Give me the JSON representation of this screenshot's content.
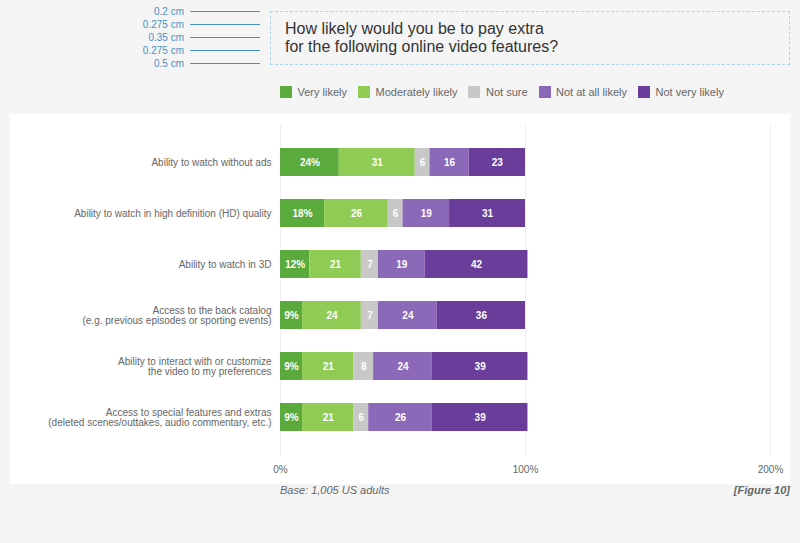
{
  "chart_data": {
    "type": "bar",
    "orientation": "horizontal",
    "stacked": true,
    "title": "How likely would you be to pay extra\nfor the following online video features?",
    "categories": [
      "Ability to watch without ads",
      "Ability to watch in high definition (HD) quality",
      "Ability to watch in 3D",
      "Access to the back catalog\n(e.g. previous episodes or sporting events)",
      "Ability to interact with or customize\nthe video to my preferences",
      "Access to special features and extras\n(deleted scenes/outtakes, audio commentary, etc.)"
    ],
    "series": [
      {
        "name": "Very likely",
        "color": "#5aaa3c",
        "values": [
          24,
          18,
          12,
          9,
          9,
          9
        ],
        "value_labels": [
          "24%",
          "18%",
          "12%",
          "9%",
          "9%",
          "9%"
        ]
      },
      {
        "name": "Moderately likely",
        "color": "#90cc55",
        "values": [
          31,
          26,
          21,
          24,
          21,
          21
        ]
      },
      {
        "name": "Not sure",
        "color": "#c8c8c8",
        "values": [
          6,
          6,
          7,
          7,
          8,
          6
        ]
      },
      {
        "name": "Not at all likely",
        "color": "#8b68b8",
        "values": [
          16,
          19,
          19,
          24,
          24,
          26
        ]
      },
      {
        "name": "Not very likely",
        "color": "#6a3d9a",
        "values": [
          23,
          31,
          42,
          36,
          39,
          39
        ]
      }
    ],
    "xlim": [
      0,
      200
    ],
    "xticks": [
      {
        "value": 0,
        "label": "0%"
      },
      {
        "value": 100,
        "label": "100%"
      },
      {
        "value": 200,
        "label": "200%"
      }
    ],
    "grid": true,
    "data_labels": true,
    "annotations": [
      "0.2 cm",
      "0.275 cm",
      "0.35 cm",
      "0.275 cm",
      "0.5 cm"
    ],
    "caption": "Base: 1,005 US adults",
    "figure_label": "[Figure 10]",
    "annotation_color": "#4a90c8",
    "title_box_color": "#a8d4f0",
    "title_color": "#333333",
    "label_color": "#666666",
    "bar_label_color": "#ffffff",
    "plot_bg_color": "#ffffff"
  }
}
